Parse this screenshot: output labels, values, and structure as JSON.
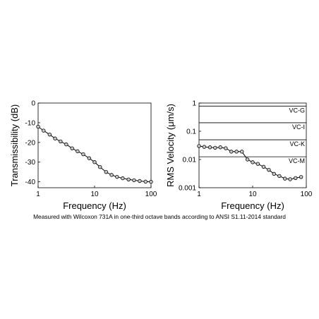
{
  "caption": "Measured with Wilcoxon 731A in one-third octave bands according to ANSI S1.11-2014 standard",
  "colors": {
    "line": "#000000",
    "marker_face": "#c8c8c8",
    "axes": "#000000"
  },
  "chart_data": [
    {
      "type": "line",
      "xlabel": "Frequency (Hz)",
      "ylabel": "Transmissibility (dB)",
      "xscale": "log",
      "xlim": [
        1,
        100
      ],
      "ylim": [
        -43,
        0
      ],
      "xticks": [
        1,
        10,
        100
      ],
      "xtick_labels": [
        "1",
        "10",
        "100"
      ],
      "yticks": [
        0,
        -10,
        -20,
        -30,
        -40
      ],
      "ytick_labels": [
        "0",
        "-10",
        "-20",
        "-30",
        "-40"
      ],
      "grid": false,
      "series": [
        {
          "x": [
            1,
            1.25,
            1.6,
            2,
            2.5,
            3.15,
            4,
            5,
            6.3,
            8,
            10,
            12.5,
            16,
            20,
            25,
            31.5,
            40,
            50,
            63,
            80,
            100
          ],
          "y": [
            -12,
            -14,
            -16,
            -18,
            -19.5,
            -21,
            -23,
            -24.5,
            -26,
            -28,
            -30,
            -32.5,
            -35,
            -36.5,
            -37.5,
            -38.2,
            -38.8,
            -39.2,
            -39.6,
            -39.9,
            -40
          ]
        }
      ]
    },
    {
      "type": "line",
      "xlabel": "Frequency (Hz)",
      "ylabel": "RMS Velocity (μm/s)",
      "xscale": "log",
      "yscale": "log",
      "xlim": [
        1,
        100
      ],
      "ylim": [
        0.001,
        1
      ],
      "xticks": [
        1,
        10,
        100
      ],
      "xtick_labels": [
        "1",
        "10",
        "100"
      ],
      "yticks": [
        1,
        0.1,
        0.01,
        0.001
      ],
      "ytick_labels": [
        "1",
        "0.1",
        "0.01",
        "0.001"
      ],
      "grid": false,
      "criteria": [
        {
          "label": "VC-G",
          "value": 0.78
        },
        {
          "label": "VC-I",
          "value": 0.2
        },
        {
          "label": "VC-K",
          "value": 0.05
        },
        {
          "label": "VC-M",
          "value": 0.0125
        }
      ],
      "series": [
        {
          "x": [
            1,
            1.25,
            1.6,
            2,
            2.5,
            3.15,
            4,
            5,
            6.3,
            8,
            10,
            12.5,
            16,
            20,
            25,
            31.5,
            40,
            50,
            63,
            80
          ],
          "y": [
            0.03,
            0.028,
            0.027,
            0.026,
            0.027,
            0.025,
            0.019,
            0.019,
            0.019,
            0.01,
            0.008,
            0.007,
            0.0055,
            0.0043,
            0.0031,
            0.0026,
            0.0021,
            0.002,
            0.0022,
            0.0024
          ]
        }
      ]
    }
  ]
}
